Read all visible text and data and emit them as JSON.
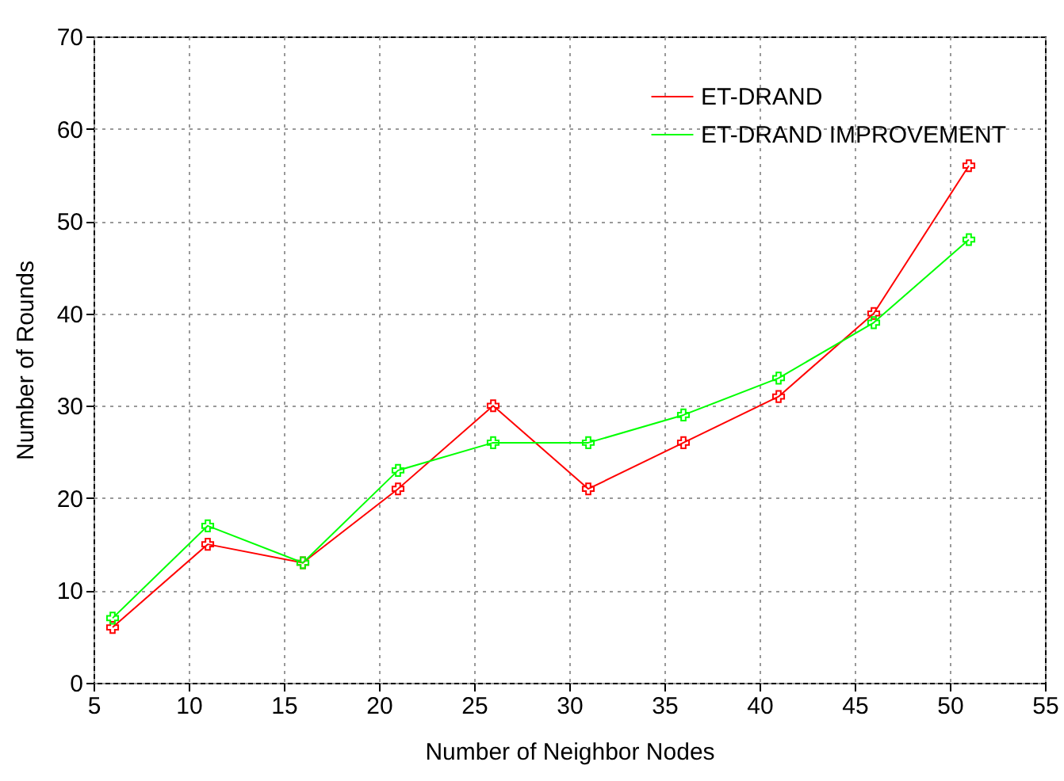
{
  "chart_data": {
    "type": "line",
    "xlabel": "Number of Neighbor Nodes",
    "ylabel": "Number of Rounds",
    "x": [
      6,
      11,
      16,
      21,
      26,
      31,
      36,
      41,
      46,
      51
    ],
    "series": [
      {
        "name": "ET-DRAND",
        "color": "#ff0000",
        "values": [
          6,
          15,
          13,
          21,
          30,
          21,
          26,
          31,
          40,
          56
        ]
      },
      {
        "name": "ET-DRAND IMPROVEMENT",
        "color": "#00ff00",
        "values": [
          7,
          17,
          13,
          23,
          26,
          26,
          29,
          33,
          39,
          48
        ]
      }
    ],
    "xlim": [
      5,
      55
    ],
    "xticks": [
      5,
      10,
      15,
      20,
      25,
      30,
      35,
      40,
      45,
      50,
      55
    ],
    "ylim": [
      0,
      70
    ],
    "yticks": [
      0,
      10,
      20,
      30,
      40,
      50,
      60,
      70
    ],
    "grid": true,
    "legend": "top right",
    "marker": "cross"
  }
}
